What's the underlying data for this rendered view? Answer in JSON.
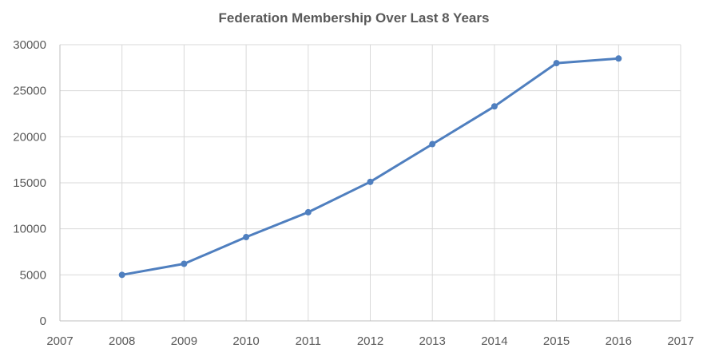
{
  "chart_data": {
    "type": "line",
    "title": "Federation Membership  Over Last 8 Years",
    "xlabel": "",
    "ylabel": "",
    "xlim": [
      2007,
      2017
    ],
    "ylim": [
      0,
      30000
    ],
    "x_ticks": [
      "2007",
      "2008",
      "2009",
      "2010",
      "2011",
      "2012",
      "2013",
      "2014",
      "2015",
      "2016",
      "2017"
    ],
    "y_ticks": [
      "0",
      "5000",
      "10000",
      "15000",
      "20000",
      "25000",
      "30000"
    ],
    "grid": true,
    "legend": "none",
    "series": [
      {
        "color": "#4f7fbf",
        "points": [
          {
            "x": 2008,
            "y": 5000
          },
          {
            "x": 2009,
            "y": 6200
          },
          {
            "x": 2010,
            "y": 9100
          },
          {
            "x": 2011,
            "y": 11800
          },
          {
            "x": 2012,
            "y": 15100
          },
          {
            "x": 2013,
            "y": 19200
          },
          {
            "x": 2014,
            "y": 23300
          },
          {
            "x": 2015,
            "y": 28000
          },
          {
            "x": 2016,
            "y": 28500
          }
        ]
      }
    ],
    "grid_color": "#d9d9d9",
    "axis_color": "#bfbfbf"
  }
}
